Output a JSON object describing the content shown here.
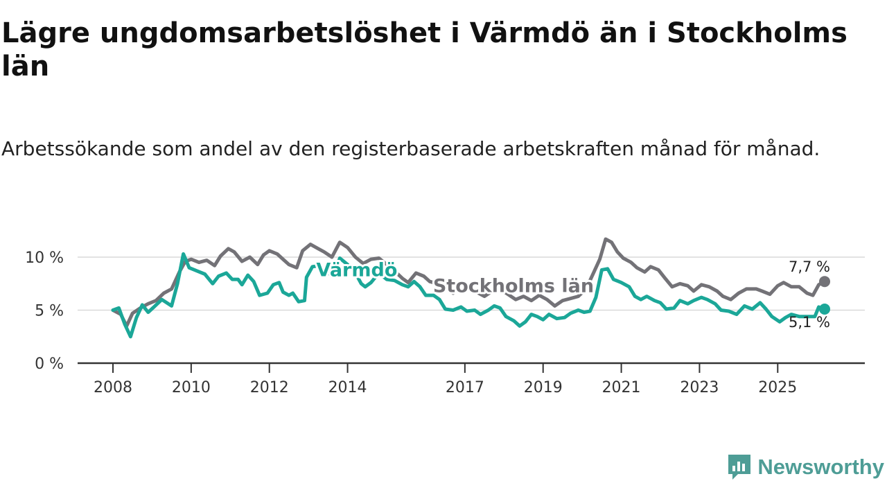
{
  "title": "Lägre ungdomsarbetslöshet i Värmdö än i Stockholms län",
  "subtitle": "Arbetssökande som andel av den registerbaserade arbetskraften månad för månad.",
  "brand": {
    "name": "Newsworthy",
    "color": "#4e9d96",
    "icon": "newsworthy-logo-icon"
  },
  "chart_data": {
    "type": "line",
    "title": "Lägre ungdomsarbetslöshet i Värmdö än i Stockholms län",
    "xlabel": "",
    "ylabel": "",
    "xlim": [
      2008.0,
      2026.5
    ],
    "ylim": [
      0,
      10
    ],
    "grid": true,
    "x_ticks": [
      {
        "value": 2008,
        "label": "2008"
      },
      {
        "value": 2010,
        "label": "2010"
      },
      {
        "value": 2012,
        "label": "2012"
      },
      {
        "value": 2014,
        "label": "2014"
      },
      {
        "value": 2017,
        "label": "2017"
      },
      {
        "value": 2019,
        "label": "2019"
      },
      {
        "value": 2021,
        "label": "2021"
      },
      {
        "value": 2023,
        "label": "2023"
      },
      {
        "value": 2025,
        "label": "2025"
      }
    ],
    "y_ticks": [
      {
        "value": 0,
        "label": "0 %"
      },
      {
        "value": 5,
        "label": "5 %"
      },
      {
        "value": 10,
        "label": "10 %"
      }
    ],
    "series": [
      {
        "name": "Stockholms län",
        "label": "Stockholms län",
        "color": "#737277",
        "end_label": "7,7 %",
        "end_value": 7.7,
        "points": [
          [
            2008.0,
            5.0
          ],
          [
            2008.2,
            4.6
          ],
          [
            2008.35,
            3.5
          ],
          [
            2008.5,
            4.7
          ],
          [
            2008.7,
            5.2
          ],
          [
            2008.9,
            5.6
          ],
          [
            2009.1,
            5.9
          ],
          [
            2009.3,
            6.6
          ],
          [
            2009.5,
            7.0
          ],
          [
            2009.7,
            8.6
          ],
          [
            2009.85,
            9.6
          ],
          [
            2010.0,
            9.8
          ],
          [
            2010.2,
            9.5
          ],
          [
            2010.4,
            9.7
          ],
          [
            2010.6,
            9.2
          ],
          [
            2010.75,
            10.1
          ],
          [
            2010.95,
            10.8
          ],
          [
            2011.1,
            10.5
          ],
          [
            2011.3,
            9.6
          ],
          [
            2011.5,
            10.0
          ],
          [
            2011.7,
            9.3
          ],
          [
            2011.85,
            10.2
          ],
          [
            2012.0,
            10.6
          ],
          [
            2012.2,
            10.3
          ],
          [
            2012.35,
            9.8
          ],
          [
            2012.5,
            9.3
          ],
          [
            2012.7,
            9.0
          ],
          [
            2012.85,
            10.6
          ],
          [
            2013.05,
            11.2
          ],
          [
            2013.25,
            10.8
          ],
          [
            2013.4,
            10.5
          ],
          [
            2013.6,
            10.0
          ],
          [
            2013.8,
            11.4
          ],
          [
            2014.0,
            10.9
          ],
          [
            2014.2,
            10.0
          ],
          [
            2014.4,
            9.4
          ],
          [
            2014.6,
            9.8
          ],
          [
            2014.8,
            9.9
          ],
          [
            2015.0,
            9.3
          ],
          [
            2015.2,
            8.7
          ],
          [
            2015.4,
            8.0
          ],
          [
            2015.55,
            7.6
          ],
          [
            2015.75,
            8.5
          ],
          [
            2015.95,
            8.2
          ],
          [
            2016.1,
            7.7
          ],
          [
            2016.3,
            7.5
          ],
          [
            2016.5,
            7.2
          ],
          [
            2016.7,
            6.6
          ],
          [
            2016.9,
            7.5
          ],
          [
            2017.1,
            7.0
          ],
          [
            2017.3,
            6.7
          ],
          [
            2017.5,
            6.3
          ],
          [
            2017.7,
            6.8
          ],
          [
            2017.9,
            7.0
          ],
          [
            2018.1,
            6.5
          ],
          [
            2018.3,
            6.0
          ],
          [
            2018.5,
            6.3
          ],
          [
            2018.7,
            5.9
          ],
          [
            2018.9,
            6.4
          ],
          [
            2019.1,
            6.0
          ],
          [
            2019.3,
            5.4
          ],
          [
            2019.5,
            5.9
          ],
          [
            2019.7,
            6.1
          ],
          [
            2019.9,
            6.3
          ],
          [
            2020.1,
            7.0
          ],
          [
            2020.3,
            8.6
          ],
          [
            2020.45,
            9.8
          ],
          [
            2020.6,
            11.7
          ],
          [
            2020.75,
            11.4
          ],
          [
            2020.9,
            10.5
          ],
          [
            2021.05,
            9.9
          ],
          [
            2021.25,
            9.5
          ],
          [
            2021.4,
            9.0
          ],
          [
            2021.6,
            8.6
          ],
          [
            2021.75,
            9.1
          ],
          [
            2021.95,
            8.8
          ],
          [
            2022.1,
            8.1
          ],
          [
            2022.3,
            7.2
          ],
          [
            2022.5,
            7.5
          ],
          [
            2022.7,
            7.3
          ],
          [
            2022.85,
            6.8
          ],
          [
            2023.05,
            7.4
          ],
          [
            2023.25,
            7.2
          ],
          [
            2023.45,
            6.8
          ],
          [
            2023.6,
            6.3
          ],
          [
            2023.8,
            6.0
          ],
          [
            2024.0,
            6.6
          ],
          [
            2024.2,
            7.0
          ],
          [
            2024.45,
            7.0
          ],
          [
            2024.6,
            6.8
          ],
          [
            2024.8,
            6.5
          ],
          [
            2025.0,
            7.3
          ],
          [
            2025.15,
            7.6
          ],
          [
            2025.35,
            7.2
          ],
          [
            2025.55,
            7.2
          ],
          [
            2025.75,
            6.6
          ],
          [
            2025.9,
            6.4
          ],
          [
            2026.05,
            7.4
          ],
          [
            2026.2,
            7.7
          ]
        ]
      },
      {
        "name": "Värmdö",
        "label": "Värmdö",
        "color": "#1ba798",
        "end_label": "5,1 %",
        "end_value": 5.1,
        "points": [
          [
            2008.0,
            5.0
          ],
          [
            2008.15,
            5.2
          ],
          [
            2008.3,
            3.7
          ],
          [
            2008.45,
            2.5
          ],
          [
            2008.6,
            4.3
          ],
          [
            2008.75,
            5.5
          ],
          [
            2008.9,
            4.8
          ],
          [
            2009.05,
            5.3
          ],
          [
            2009.25,
            6.0
          ],
          [
            2009.5,
            5.4
          ],
          [
            2009.65,
            7.5
          ],
          [
            2009.8,
            10.3
          ],
          [
            2009.95,
            9.0
          ],
          [
            2010.15,
            8.7
          ],
          [
            2010.35,
            8.4
          ],
          [
            2010.55,
            7.5
          ],
          [
            2010.7,
            8.2
          ],
          [
            2010.9,
            8.5
          ],
          [
            2011.05,
            7.9
          ],
          [
            2011.2,
            7.9
          ],
          [
            2011.3,
            7.4
          ],
          [
            2011.45,
            8.3
          ],
          [
            2011.6,
            7.7
          ],
          [
            2011.75,
            6.4
          ],
          [
            2011.95,
            6.6
          ],
          [
            2012.1,
            7.4
          ],
          [
            2012.25,
            7.6
          ],
          [
            2012.35,
            6.7
          ],
          [
            2012.5,
            6.4
          ],
          [
            2012.6,
            6.6
          ],
          [
            2012.75,
            5.8
          ],
          [
            2012.9,
            5.9
          ],
          [
            2012.95,
            8.1
          ],
          [
            2013.1,
            9.1
          ],
          [
            2013.3,
            9.2
          ],
          [
            2013.45,
            8.6
          ],
          [
            2013.65,
            8.2
          ],
          [
            2013.8,
            9.9
          ],
          [
            2014.0,
            9.3
          ],
          [
            2014.2,
            8.5
          ],
          [
            2014.35,
            7.5
          ],
          [
            2014.45,
            7.2
          ],
          [
            2014.6,
            7.6
          ],
          [
            2014.8,
            8.5
          ],
          [
            2015.0,
            7.9
          ],
          [
            2015.2,
            7.8
          ],
          [
            2015.4,
            7.4
          ],
          [
            2015.55,
            7.2
          ],
          [
            2015.7,
            7.7
          ],
          [
            2015.85,
            7.2
          ],
          [
            2016.0,
            6.4
          ],
          [
            2016.2,
            6.4
          ],
          [
            2016.35,
            6.0
          ],
          [
            2016.5,
            5.1
          ],
          [
            2016.7,
            5.0
          ],
          [
            2016.9,
            5.3
          ],
          [
            2017.05,
            4.9
          ],
          [
            2017.25,
            5.0
          ],
          [
            2017.4,
            4.6
          ],
          [
            2017.6,
            5.0
          ],
          [
            2017.75,
            5.4
          ],
          [
            2017.9,
            5.2
          ],
          [
            2018.05,
            4.4
          ],
          [
            2018.25,
            4.0
          ],
          [
            2018.4,
            3.5
          ],
          [
            2018.55,
            3.9
          ],
          [
            2018.7,
            4.6
          ],
          [
            2018.85,
            4.4
          ],
          [
            2019.0,
            4.1
          ],
          [
            2019.15,
            4.6
          ],
          [
            2019.35,
            4.2
          ],
          [
            2019.55,
            4.3
          ],
          [
            2019.7,
            4.7
          ],
          [
            2019.9,
            5.0
          ],
          [
            2020.05,
            4.8
          ],
          [
            2020.2,
            4.9
          ],
          [
            2020.35,
            6.2
          ],
          [
            2020.5,
            8.8
          ],
          [
            2020.65,
            8.9
          ],
          [
            2020.8,
            7.9
          ],
          [
            2021.0,
            7.6
          ],
          [
            2021.2,
            7.2
          ],
          [
            2021.35,
            6.3
          ],
          [
            2021.5,
            6.0
          ],
          [
            2021.65,
            6.3
          ],
          [
            2021.85,
            5.9
          ],
          [
            2022.0,
            5.7
          ],
          [
            2022.15,
            5.1
          ],
          [
            2022.35,
            5.2
          ],
          [
            2022.5,
            5.9
          ],
          [
            2022.7,
            5.6
          ],
          [
            2022.85,
            5.9
          ],
          [
            2023.05,
            6.2
          ],
          [
            2023.2,
            6.0
          ],
          [
            2023.4,
            5.6
          ],
          [
            2023.55,
            5.0
          ],
          [
            2023.75,
            4.9
          ],
          [
            2023.95,
            4.6
          ],
          [
            2024.15,
            5.4
          ],
          [
            2024.35,
            5.1
          ],
          [
            2024.55,
            5.7
          ],
          [
            2024.7,
            5.1
          ],
          [
            2024.85,
            4.4
          ],
          [
            2025.05,
            3.9
          ],
          [
            2025.2,
            4.3
          ],
          [
            2025.35,
            4.6
          ],
          [
            2025.55,
            4.4
          ],
          [
            2025.75,
            4.4
          ],
          [
            2025.95,
            4.4
          ],
          [
            2026.05,
            5.3
          ],
          [
            2026.15,
            5.0
          ],
          [
            2026.2,
            5.1
          ]
        ]
      }
    ]
  }
}
